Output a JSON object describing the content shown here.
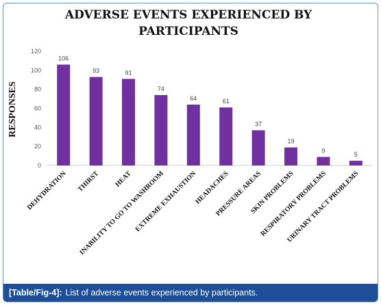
{
  "caption": {
    "label": "[Table/Fig-4]:",
    "text": "List of adverse events experienced by participants."
  },
  "chart_data": {
    "type": "bar",
    "title": [
      "ADVERSE EVENTS EXPERIENCED BY",
      "PARTICIPANTS"
    ],
    "xlabel": "",
    "ylabel": "RESPONSES",
    "ylim": [
      0,
      120
    ],
    "yticks": [
      0,
      20,
      40,
      60,
      80,
      100,
      120
    ],
    "grid": false,
    "legend": "none",
    "bar_color": "#7030a0",
    "categories": [
      "DEHYDRATION",
      "THIRST",
      "HEAT",
      "INABILITY TO GO TO WASHROOM",
      "EXTREME EXHAUSTION",
      "HEADACHES",
      "PRESSURE AREAS",
      "SKIN PROBLEMS",
      "RESPIRATORY PROBLEMS",
      "URINARY TRACT PROBLEMS"
    ],
    "values": [
      106,
      93,
      91,
      74,
      64,
      61,
      37,
      19,
      9,
      5
    ]
  }
}
